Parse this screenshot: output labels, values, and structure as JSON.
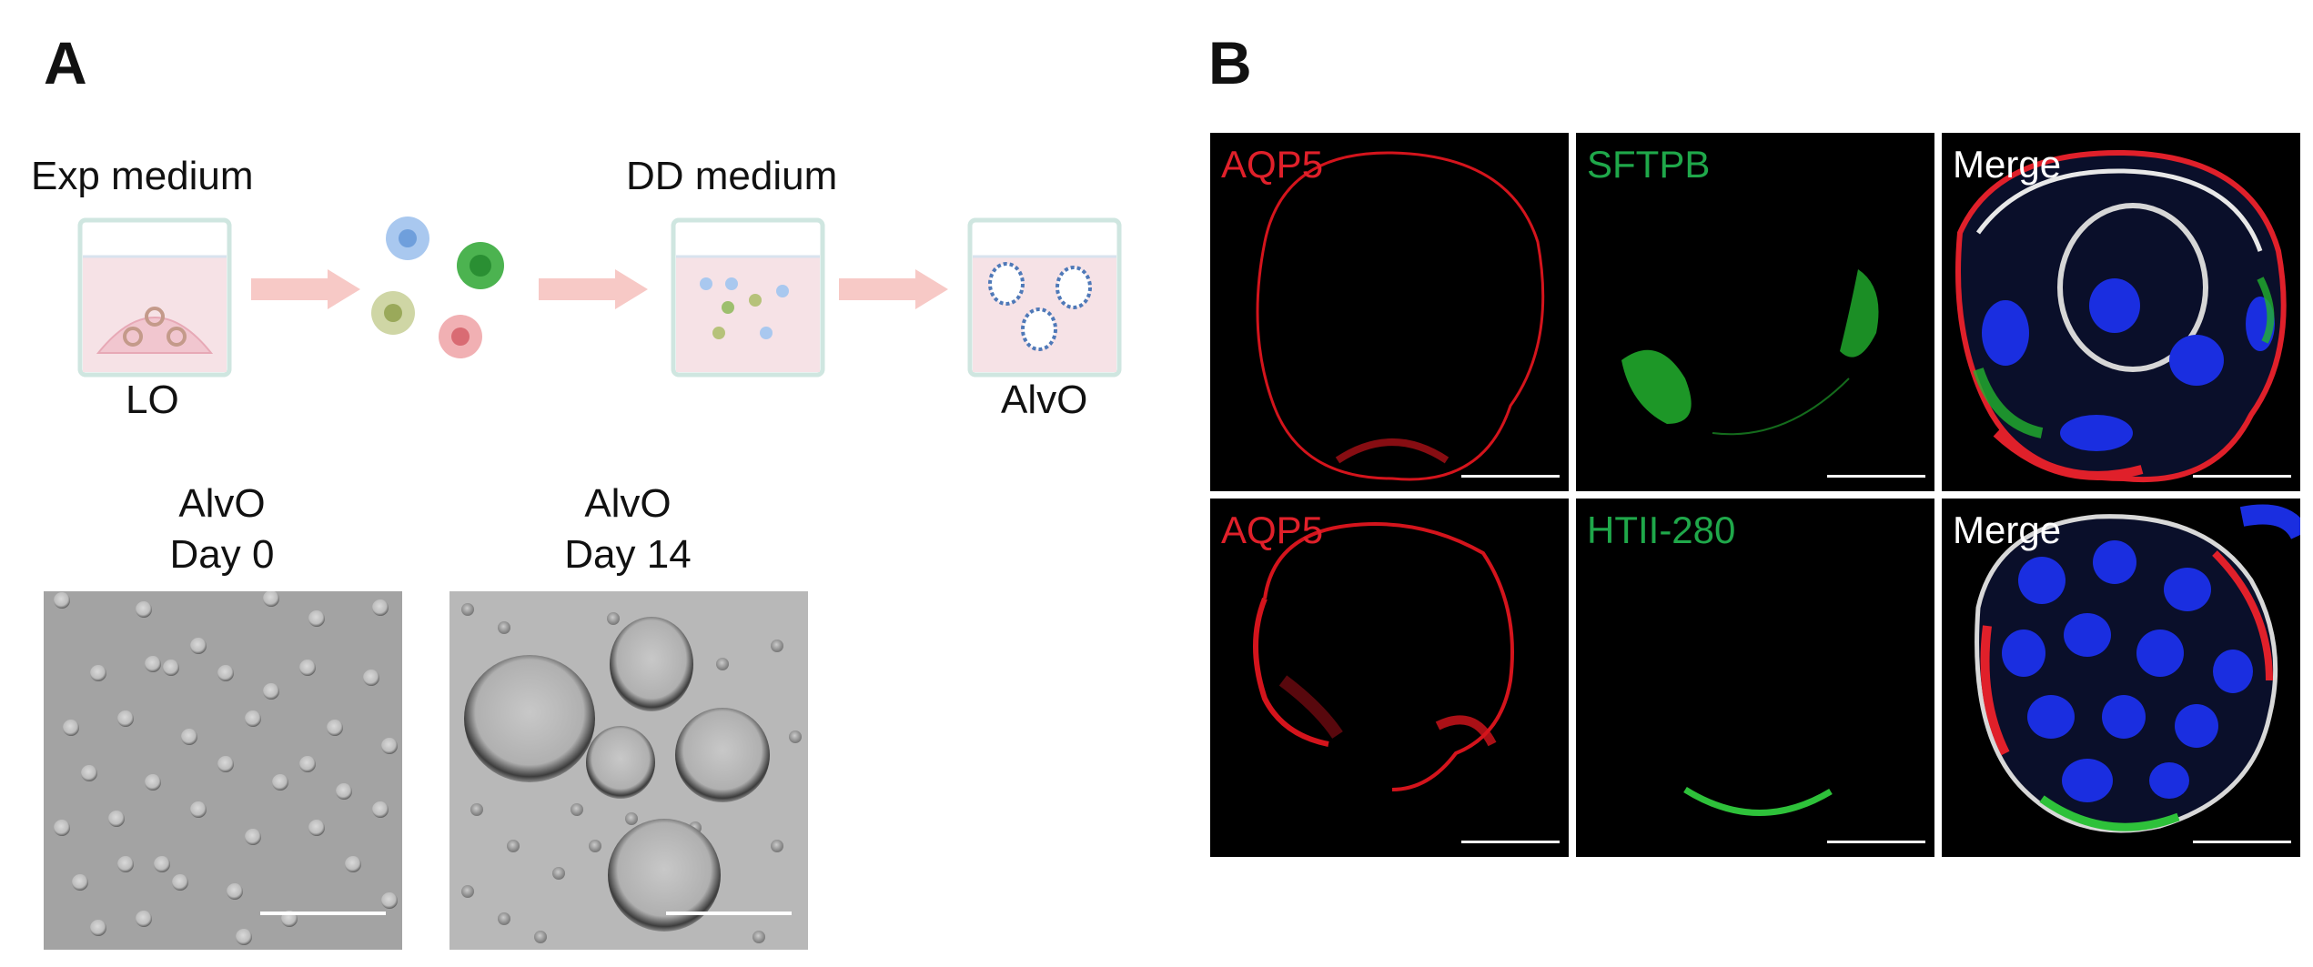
{
  "panels": {
    "a": {
      "letter": "A",
      "labels": {
        "exp_medium": "Exp medium",
        "dd_medium": "DD medium",
        "lo": "LO",
        "alvo": "AlvO"
      },
      "micrographs": [
        {
          "title_line1": "AlvO",
          "title_line2": "Day 0"
        },
        {
          "title_line1": "AlvO",
          "title_line2": "Day 14"
        }
      ]
    },
    "b": {
      "letter": "B",
      "rows": [
        {
          "tiles": [
            {
              "label": "AQP5",
              "color": "#e0202a"
            },
            {
              "label": "SFTPB",
              "color": "#1fa84a"
            },
            {
              "label": "Merge",
              "color": "#ffffff"
            }
          ]
        },
        {
          "tiles": [
            {
              "label": "AQP5",
              "color": "#e0202a"
            },
            {
              "label": "HTII-280",
              "color": "#1fa84a"
            },
            {
              "label": "Merge",
              "color": "#ffffff"
            }
          ]
        }
      ]
    }
  },
  "colors": {
    "arrow": "#f7c9c6",
    "well_medium": "#f6e2e6",
    "well_border": "#cfe6e0",
    "cell_blue": "#8fb6e8",
    "cell_green": "#3caa45",
    "cell_olive": "#b6c27a",
    "cell_red": "#e98a90"
  }
}
